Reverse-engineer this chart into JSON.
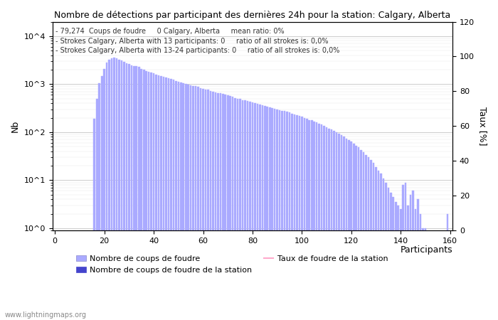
{
  "title": "Nombre de détections par participant des dernières 24h pour la station: Calgary, Alberta",
  "annotation_lines": [
    "79,274  Coups de foudre     0 Calgary, Alberta     mean ratio: 0%",
    "Strokes Calgary, Alberta with 13 participants: 0     ratio of all strokes is: 0,0%",
    "Strokes Calgary, Alberta with 13-24 participants: 0     ratio of all strokes is: 0,0%"
  ],
  "xlabel": "Participants",
  "ylabel_left": "Nb",
  "ylabel_right": "Taux [%]",
  "bar_color": "#aaaaff",
  "station_bar_color": "#4444cc",
  "taux_line_color": "#ffaacc",
  "watermark": "www.lightningmaps.org",
  "legend_entries": [
    "Nombre de coups de foudre",
    "Nombre de coups de foudre de la station",
    "Taux de foudre de la station"
  ],
  "xlim": [
    -1,
    161
  ],
  "ylim_bottom": 0.9,
  "ylim_top": 20000,
  "ylim_right": [
    0,
    120
  ],
  "xticks": [
    0,
    20,
    40,
    60,
    80,
    100,
    120,
    140,
    160
  ],
  "yticks_right": [
    0,
    20,
    40,
    60,
    80,
    100,
    120
  ],
  "bar_values": [
    0,
    0,
    0,
    0,
    0,
    0,
    0,
    0,
    0,
    0,
    0,
    0,
    0,
    0,
    0,
    0,
    190,
    500,
    1050,
    1500,
    2100,
    2800,
    3200,
    3500,
    3600,
    3450,
    3200,
    3100,
    2900,
    2700,
    2600,
    2500,
    2400,
    2350,
    2300,
    2100,
    2000,
    1900,
    1800,
    1750,
    1680,
    1600,
    1530,
    1480,
    1430,
    1380,
    1320,
    1280,
    1230,
    1180,
    1140,
    1100,
    1060,
    1020,
    990,
    960,
    930,
    900,
    870,
    840,
    810,
    780,
    760,
    730,
    700,
    680,
    660,
    640,
    620,
    600,
    580,
    560,
    540,
    520,
    500,
    490,
    470,
    460,
    440,
    430,
    415,
    400,
    385,
    375,
    360,
    350,
    340,
    330,
    320,
    310,
    300,
    290,
    280,
    275,
    265,
    255,
    245,
    235,
    225,
    220,
    210,
    200,
    190,
    180,
    175,
    165,
    158,
    150,
    143,
    136,
    128,
    120,
    113,
    105,
    98,
    92,
    86,
    80,
    74,
    68,
    63,
    58,
    53,
    48,
    43,
    38,
    34,
    30,
    26,
    23,
    19,
    16,
    14,
    11,
    9,
    7,
    5.5,
    4.5,
    3.5,
    3,
    2.5,
    8,
    9,
    3,
    5,
    6,
    2.5,
    4,
    2,
    1,
    1,
    0,
    0,
    0,
    0,
    0,
    0,
    0,
    0,
    2
  ]
}
